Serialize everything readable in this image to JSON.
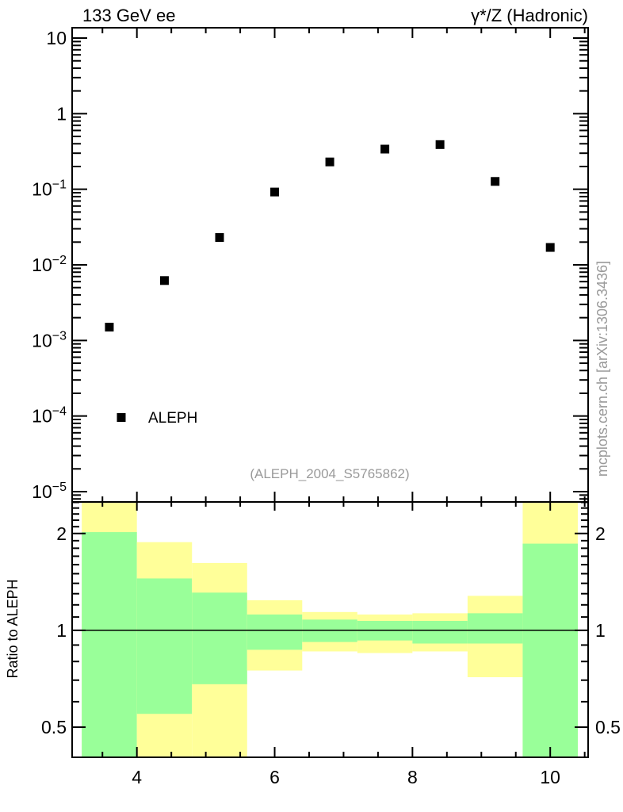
{
  "header": {
    "left_title": "133 GeV ee",
    "right_title": "γ*/Z (Hadronic)"
  },
  "watermark": {
    "text": "(ALEPH_2004_S5765862)",
    "color": "#9a9a9a"
  },
  "side_note": {
    "text": "mcplots.cern.ch [arXiv:1306.3436]",
    "color": "#9a9a9a"
  },
  "colors": {
    "band_green": "#99ff99",
    "band_yellow": "#ffff99",
    "marker": "#000000",
    "axis": "#000000",
    "gray_text": "#9a9a9a"
  },
  "chart_data": [
    {
      "type": "scatter",
      "panel": "main",
      "yscale": "log",
      "xlim": [
        3.06,
        10.55
      ],
      "ylim": [
        7.3e-06,
        13.7
      ],
      "legend": {
        "label": "ALEPH",
        "marker": "filled-square"
      },
      "series": [
        {
          "name": "ALEPH",
          "marker": "filled-square",
          "color": "#000000",
          "x": [
            3.6,
            4.4,
            5.2,
            6.0,
            6.8,
            7.6,
            8.4,
            9.2,
            10.0
          ],
          "y": [
            0.0015,
            0.0062,
            0.023,
            0.092,
            0.23,
            0.34,
            0.39,
            0.127,
            0.017
          ]
        }
      ],
      "x_major_ticks": [
        4,
        6,
        8,
        10
      ],
      "x_minor_ticks": [
        3.5,
        4.5,
        5.0,
        5.5,
        6.5,
        7.0,
        7.5,
        8.5,
        9.0,
        9.5,
        10.5
      ],
      "y_major_ticks": [
        10,
        1,
        0.1,
        0.01,
        0.001,
        0.0001,
        1e-05
      ],
      "y_tick_labels": [
        {
          "base": "10",
          "exp": ""
        },
        {
          "base": "1",
          "exp": ""
        },
        {
          "base": "10",
          "exp": "−1"
        },
        {
          "base": "10",
          "exp": "−2"
        },
        {
          "base": "10",
          "exp": "−3"
        },
        {
          "base": "10",
          "exp": "−4"
        },
        {
          "base": "10",
          "exp": "−5"
        }
      ]
    },
    {
      "type": "band-histogram",
      "panel": "ratio",
      "ylabel": "Ratio to ALEPH",
      "yscale": "log",
      "xlim": [
        3.06,
        10.55
      ],
      "ylim": [
        0.403,
        2.507
      ],
      "reference_line": 1,
      "bin_edges": [
        3.2,
        4.0,
        4.8,
        5.6,
        6.4,
        7.2,
        8.0,
        8.8,
        9.6,
        10.4
      ],
      "bands": [
        {
          "yellow": [
            0.403,
            2.507
          ],
          "green": [
            0.403,
            2.02
          ]
        },
        {
          "yellow": [
            0.403,
            1.88
          ],
          "green": [
            0.55,
            1.45
          ]
        },
        {
          "yellow": [
            0.403,
            1.62
          ],
          "green": [
            0.68,
            1.31
          ]
        },
        {
          "yellow": [
            0.75,
            1.24
          ],
          "green": [
            0.87,
            1.12
          ]
        },
        {
          "yellow": [
            0.86,
            1.14
          ],
          "green": [
            0.92,
            1.08
          ]
        },
        {
          "yellow": [
            0.85,
            1.12
          ],
          "green": [
            0.93,
            1.07
          ]
        },
        {
          "yellow": [
            0.86,
            1.13
          ],
          "green": [
            0.91,
            1.07
          ]
        },
        {
          "yellow": [
            0.715,
            1.28
          ],
          "green": [
            0.91,
            1.13
          ]
        },
        {
          "yellow": [
            0.403,
            2.507
          ],
          "green": [
            0.403,
            1.86
          ]
        }
      ],
      "x_major_ticks": [
        4,
        6,
        8,
        10
      ],
      "x_tick_labels": [
        "4",
        "6",
        "8",
        "10"
      ],
      "y_major_ticks": [
        0.5,
        1,
        2
      ],
      "y_tick_labels": [
        "0.5",
        "1",
        "2"
      ]
    }
  ]
}
